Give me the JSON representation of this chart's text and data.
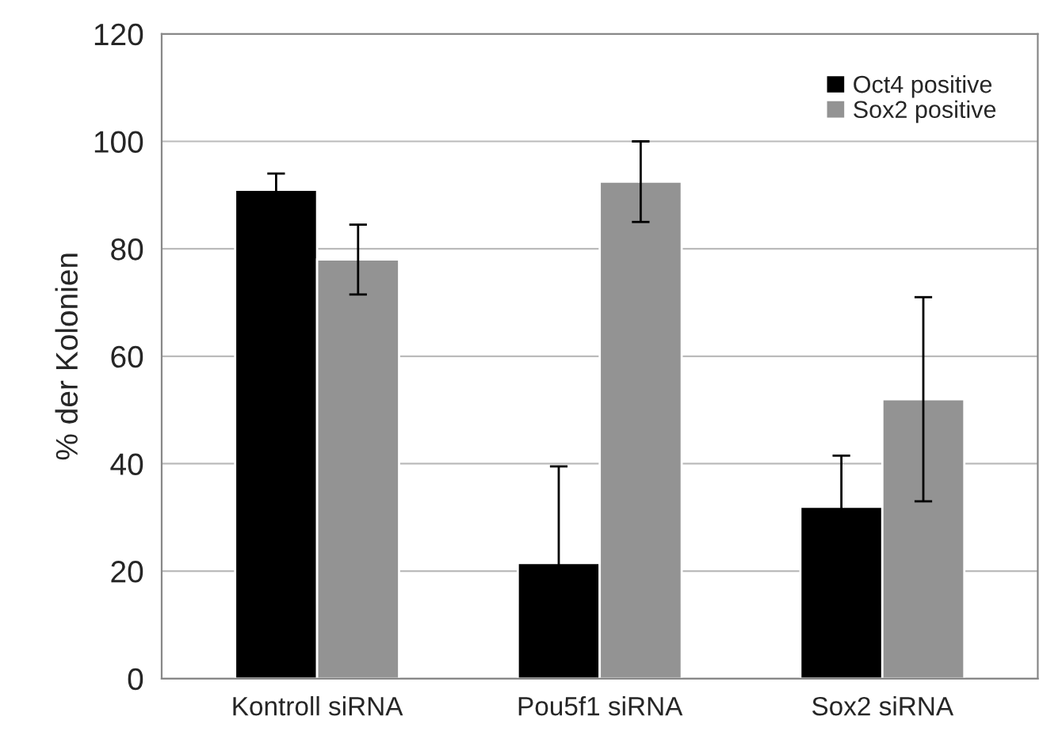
{
  "chart_data": {
    "type": "bar",
    "ylabel": "% der Kolonien",
    "categories": [
      "Kontroll siRNA",
      "Pou5f1 siRNA",
      "Sox2 siRNA"
    ],
    "series": [
      {
        "name": "Oct4 positive",
        "color": "#000000",
        "values": [
          91,
          21.5,
          32
        ],
        "errors": [
          3,
          18,
          9.5
        ]
      },
      {
        "name": "Sox2 positive",
        "color": "#939393",
        "values": [
          78,
          92.5,
          52
        ],
        "errors": [
          6.5,
          7.5,
          19
        ]
      }
    ],
    "ylim": [
      0,
      120
    ],
    "yticks": [
      0,
      20,
      40,
      60,
      80,
      100,
      120
    ],
    "grid": "y",
    "legend": "top right"
  }
}
